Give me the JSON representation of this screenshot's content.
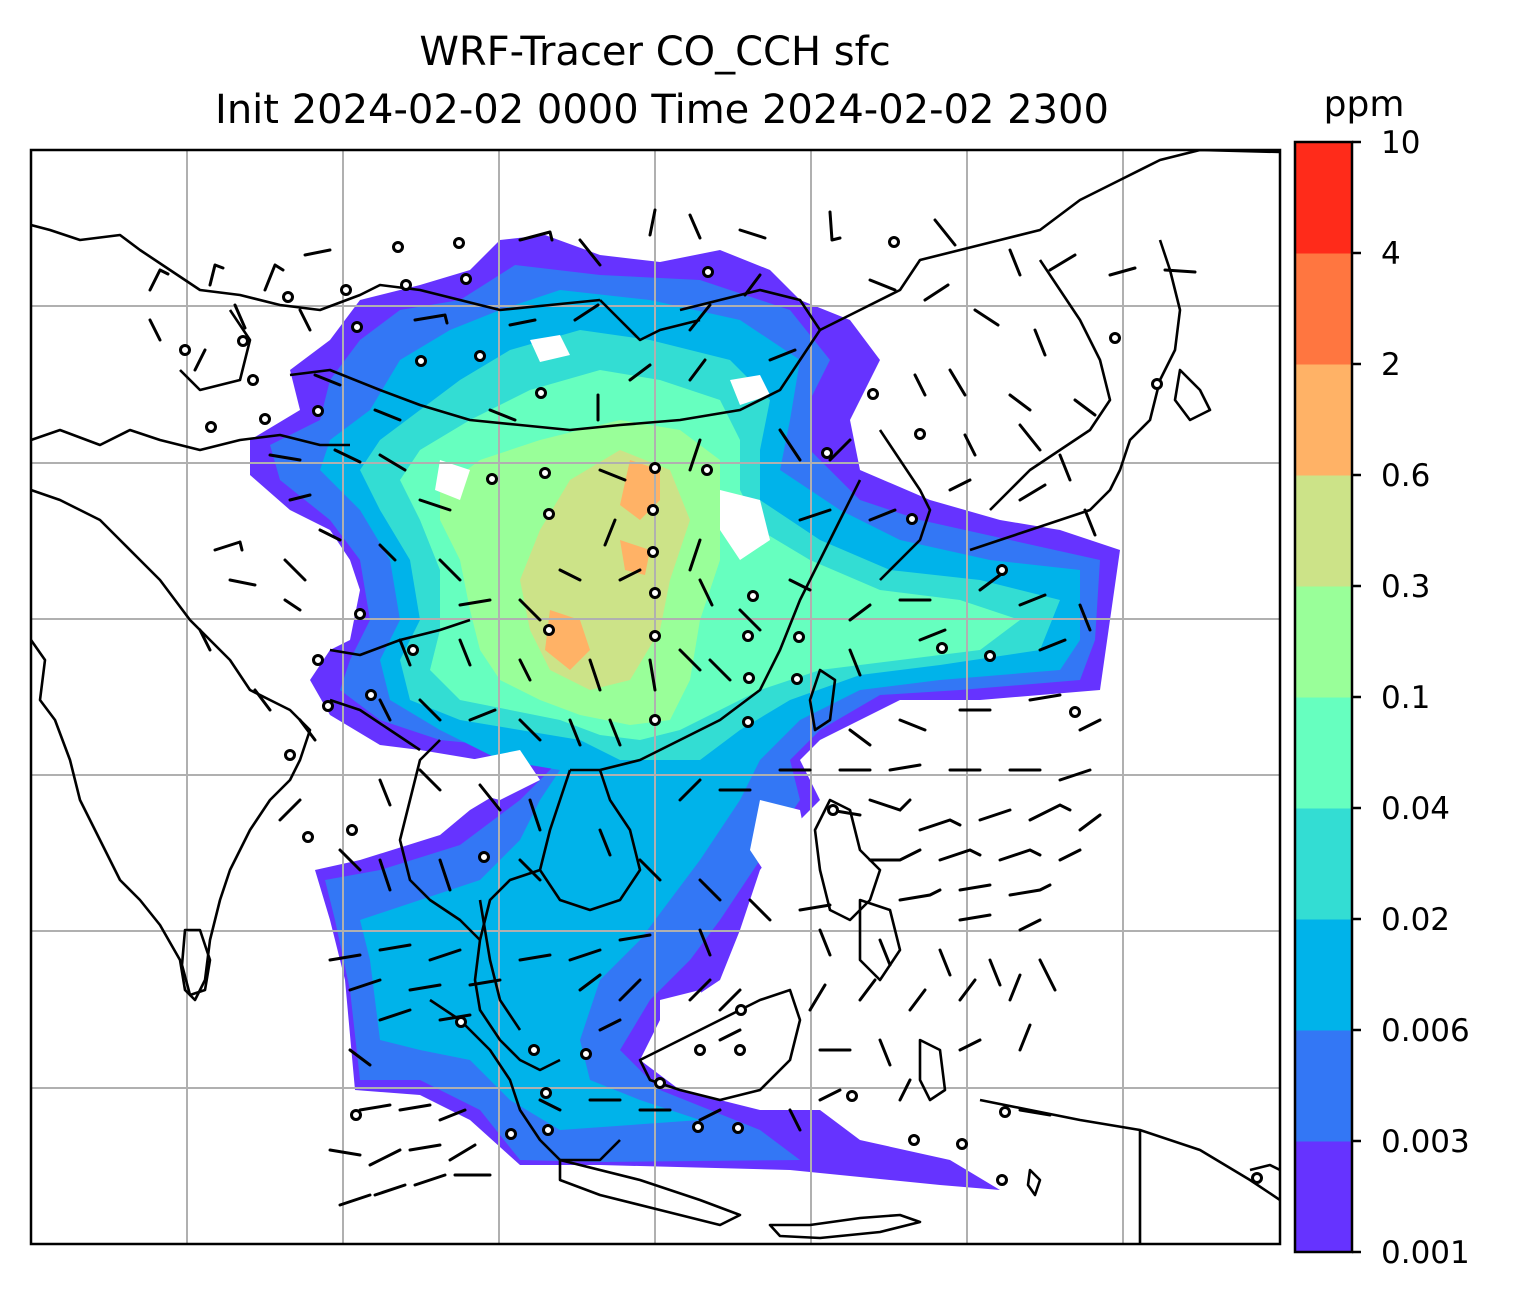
{
  "title": {
    "line1": "WRF-Tracer CO_CCH sfc",
    "line2": "Init 2024-02-02 0000 Time 2024-02-02 2300"
  },
  "colorbar": {
    "unit": "ppm",
    "ticks": [
      "0.001",
      "0.003",
      "0.006",
      "0.02",
      "0.04",
      "0.1",
      "0.3",
      "0.6",
      "2",
      "4",
      "10"
    ],
    "colors": [
      "#6633ff",
      "#3377f5",
      "#00b3ea",
      "#33ddd3",
      "#66ffbf",
      "#99ff99",
      "#cce388",
      "#ffb266",
      "#ff7640",
      "#ff2b1a"
    ]
  },
  "map": {
    "land_outline_color": "#000000",
    "gridline_color": "#b0b0b0",
    "wind_barb_color": "#000000",
    "grid_columns": 8,
    "grid_rows": 7
  }
}
